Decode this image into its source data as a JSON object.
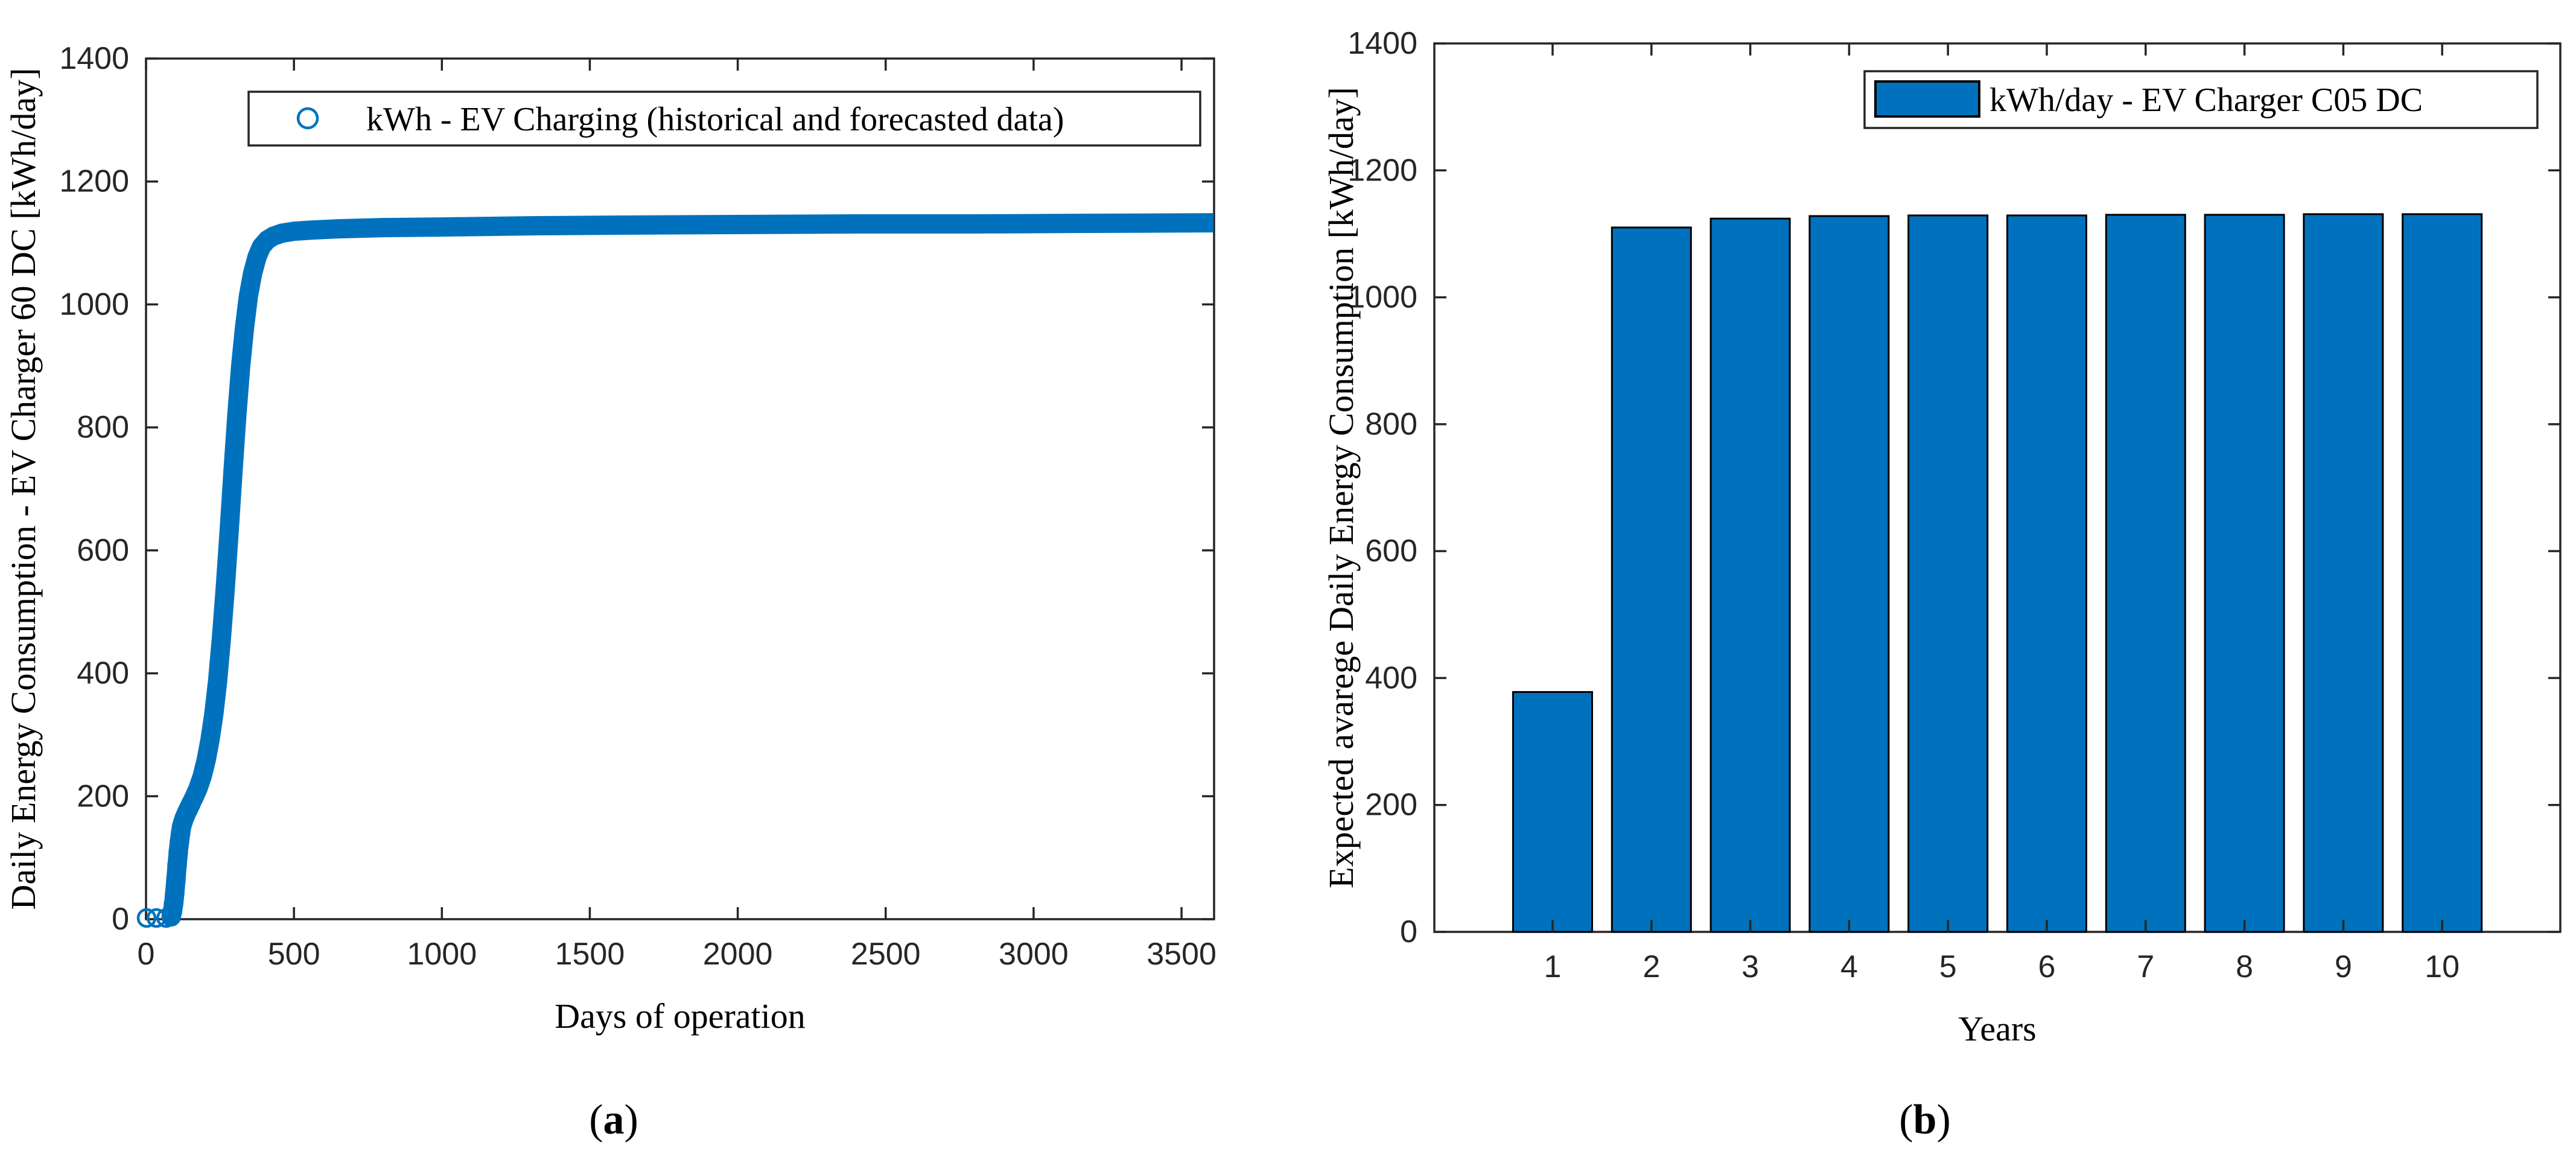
{
  "figure": {
    "captions": [
      {
        "open": "(",
        "letter": "a",
        "close": ")"
      },
      {
        "open": "(",
        "letter": "b",
        "close": ")"
      }
    ]
  },
  "colors": {
    "matlab_blue": "#0072BD",
    "axis_color": "#262626",
    "bar_edge": "#000000"
  },
  "chart_data": [
    {
      "id": "a",
      "type": "scatter",
      "legend_label": "kWh - EV Charging (historical and forecasted data)",
      "legend_marker": "circle-outline",
      "xlabel": "Days of operation",
      "ylabel": "Daily Energy Consumption - EV Charger 60 DC [kWh/day]",
      "xlim": [
        0,
        3650
      ],
      "ylim": [
        0,
        1400
      ],
      "x_ticks": [
        0,
        500,
        1000,
        1500,
        2000,
        2500,
        3000,
        3500
      ],
      "y_ticks": [
        0,
        200,
        400,
        600,
        800,
        1000,
        1200,
        1400
      ],
      "marker_color": "#0072BD",
      "isolated_points": [
        [
          2,
          2
        ],
        [
          35,
          2
        ],
        [
          68,
          2
        ]
      ],
      "start_ring_days": [
        85,
        89,
        93,
        97,
        101,
        105,
        109,
        113,
        117,
        121,
        125,
        129,
        133,
        137,
        141,
        146,
        151
      ],
      "curve_points": [
        [
          85,
          4
        ],
        [
          90,
          14
        ],
        [
          95,
          32
        ],
        [
          100,
          58
        ],
        [
          105,
          88
        ],
        [
          110,
          114
        ],
        [
          115,
          134
        ],
        [
          120,
          150
        ],
        [
          128,
          163
        ],
        [
          138,
          174
        ],
        [
          150,
          186
        ],
        [
          163,
          199
        ],
        [
          176,
          213
        ],
        [
          190,
          233
        ],
        [
          203,
          258
        ],
        [
          216,
          291
        ],
        [
          229,
          333
        ],
        [
          242,
          388
        ],
        [
          255,
          458
        ],
        [
          268,
          540
        ],
        [
          281,
          632
        ],
        [
          294,
          728
        ],
        [
          307,
          820
        ],
        [
          320,
          900
        ],
        [
          333,
          963
        ],
        [
          346,
          1013
        ],
        [
          360,
          1050
        ],
        [
          375,
          1077
        ],
        [
          390,
          1094
        ],
        [
          410,
          1105
        ],
        [
          430,
          1111
        ],
        [
          460,
          1116
        ],
        [
          500,
          1119
        ],
        [
          560,
          1121
        ],
        [
          650,
          1123
        ],
        [
          800,
          1125
        ],
        [
          1000,
          1126
        ],
        [
          1300,
          1128
        ],
        [
          1600,
          1129
        ],
        [
          2000,
          1130
        ],
        [
          2400,
          1131
        ],
        [
          2800,
          1131
        ],
        [
          3200,
          1132
        ],
        [
          3650,
          1133
        ]
      ]
    },
    {
      "id": "b",
      "type": "bar",
      "legend_label": "kWh/day - EV Charger C05 DC",
      "legend_marker": "square-fill",
      "xlabel": "Years",
      "ylabel": "Expected avarege Daily Energy Consumption [kWh/day]",
      "categories": [
        1,
        2,
        3,
        4,
        5,
        6,
        7,
        8,
        9,
        10
      ],
      "values": [
        378,
        1110,
        1124,
        1128,
        1129,
        1129,
        1130,
        1130,
        1131,
        1131
      ],
      "ylim": [
        0,
        1400
      ],
      "y_ticks": [
        0,
        200,
        400,
        600,
        800,
        1000,
        1200,
        1400
      ],
      "bar_color": "#0072BD",
      "bar_edge_color": "#000000"
    }
  ]
}
